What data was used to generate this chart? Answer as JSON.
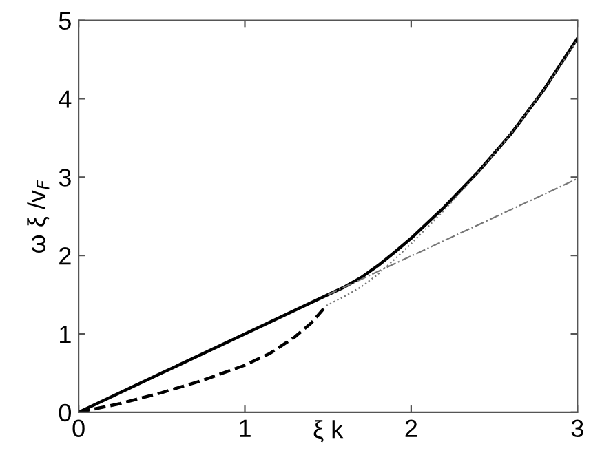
{
  "chart_data": {
    "type": "line",
    "xlabel": "ξ k",
    "ylabel": "ω ξ /v$_{F}$",
    "xlim": [
      0,
      3
    ],
    "ylim": [
      0,
      5
    ],
    "xticks": [
      0,
      1,
      2,
      3
    ],
    "yticks": [
      0,
      1,
      2,
      3,
      4,
      5
    ],
    "grid": false,
    "legend": false,
    "marker": "none",
    "series": [
      {
        "color": "#000000",
        "line_style": "solid",
        "x": [
          0,
          0.5,
          1.0,
          1.5,
          1.6,
          1.7,
          1.8,
          1.9,
          2.0,
          2.2,
          2.4,
          2.6,
          2.8,
          3.0
        ],
        "values": [
          0,
          0.5,
          1.0,
          1.5,
          1.6,
          1.72,
          1.87,
          2.04,
          2.22,
          2.62,
          3.06,
          3.55,
          4.12,
          4.77
        ]
      },
      {
        "color": "#000000",
        "line_style": "dashed",
        "x": [
          0,
          0.25,
          0.5,
          0.75,
          1.0,
          1.15,
          1.3,
          1.4,
          1.49
        ],
        "values": [
          0,
          0.11,
          0.25,
          0.41,
          0.6,
          0.75,
          0.96,
          1.14,
          1.36
        ]
      },
      {
        "color": "#777777",
        "line_style": "dotted",
        "x": [
          1.49,
          1.6,
          1.7,
          1.8,
          1.9,
          2.0,
          2.2,
          2.4,
          2.6,
          2.8,
          3.0
        ],
        "values": [
          1.36,
          1.48,
          1.6,
          1.76,
          1.95,
          2.15,
          2.58,
          3.05,
          3.55,
          4.12,
          4.75
        ]
      },
      {
        "color": "#777777",
        "line_style": "dashdot",
        "x": [
          1.5,
          3.0
        ],
        "values": [
          1.5,
          2.98
        ]
      }
    ]
  }
}
